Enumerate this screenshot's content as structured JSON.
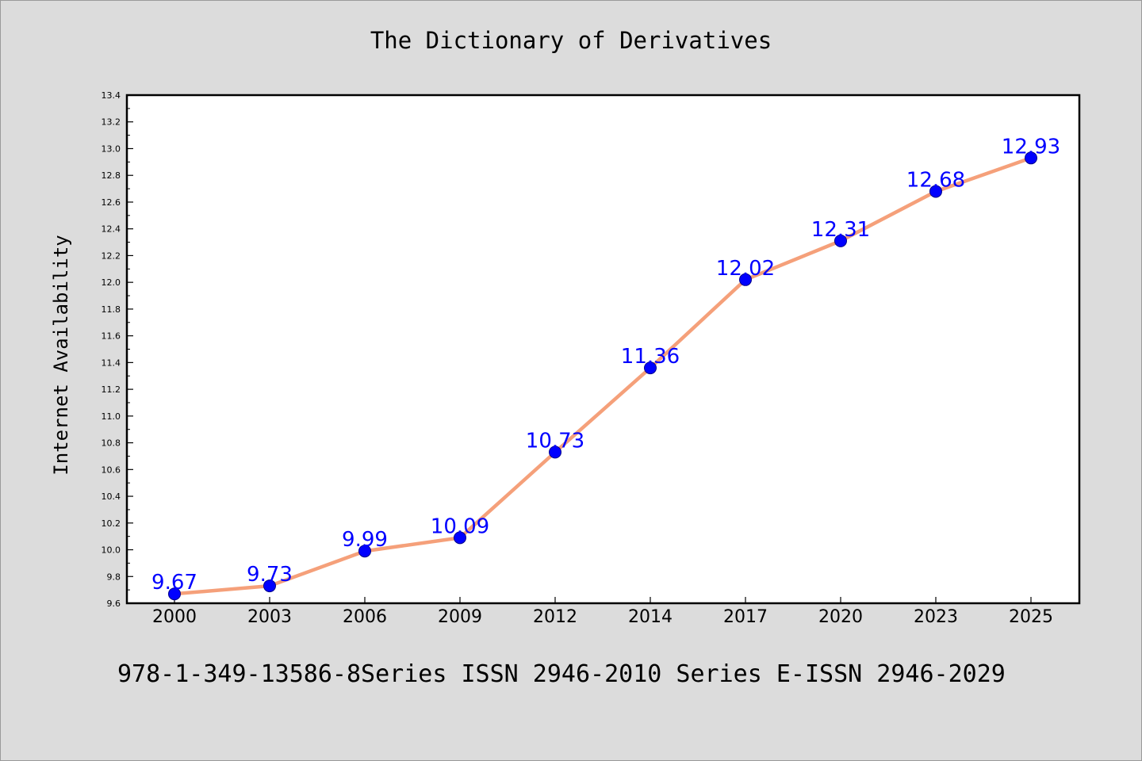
{
  "header": {
    "title": "The Dictionary of Derivatives"
  },
  "footer": {
    "text": "978-1-349-13586-8Series ISSN 2946-2010 Series E-ISSN 2946-2029"
  },
  "colors": {
    "background": "#dcdcdc",
    "plot_background": "#ffffff",
    "line": "#f5a07a",
    "marker": "#0000ff",
    "data_label": "#0000ff"
  },
  "chart_data": {
    "type": "line",
    "title": "The Dictionary of Derivatives",
    "xlabel": "",
    "ylabel": "Internet Availability",
    "x": [
      "2000",
      "2003",
      "2006",
      "2009",
      "2012",
      "2014",
      "2017",
      "2020",
      "2023",
      "2025"
    ],
    "series": [
      {
        "values": [
          9.67,
          9.73,
          9.99,
          10.09,
          10.73,
          11.36,
          12.02,
          12.31,
          12.68,
          12.93
        ],
        "data_labels": [
          "9.67",
          "9.73",
          "9.99",
          "10.09",
          "10.73",
          "11.36",
          "12.02",
          "12.31",
          "12.68",
          "12.93"
        ]
      }
    ],
    "ylim": [
      9.6,
      13.4
    ],
    "y_major_ticks": [
      "9.6",
      "9.8",
      "10.0",
      "10.2",
      "10.4",
      "10.6",
      "10.8",
      "11.0",
      "11.2",
      "11.4",
      "11.6",
      "11.8",
      "12.0",
      "12.2",
      "12.4",
      "12.6",
      "12.8",
      "13.0",
      "13.2",
      "13.4"
    ],
    "y_minor_step": 0.1,
    "grid": false,
    "legend": "none"
  }
}
